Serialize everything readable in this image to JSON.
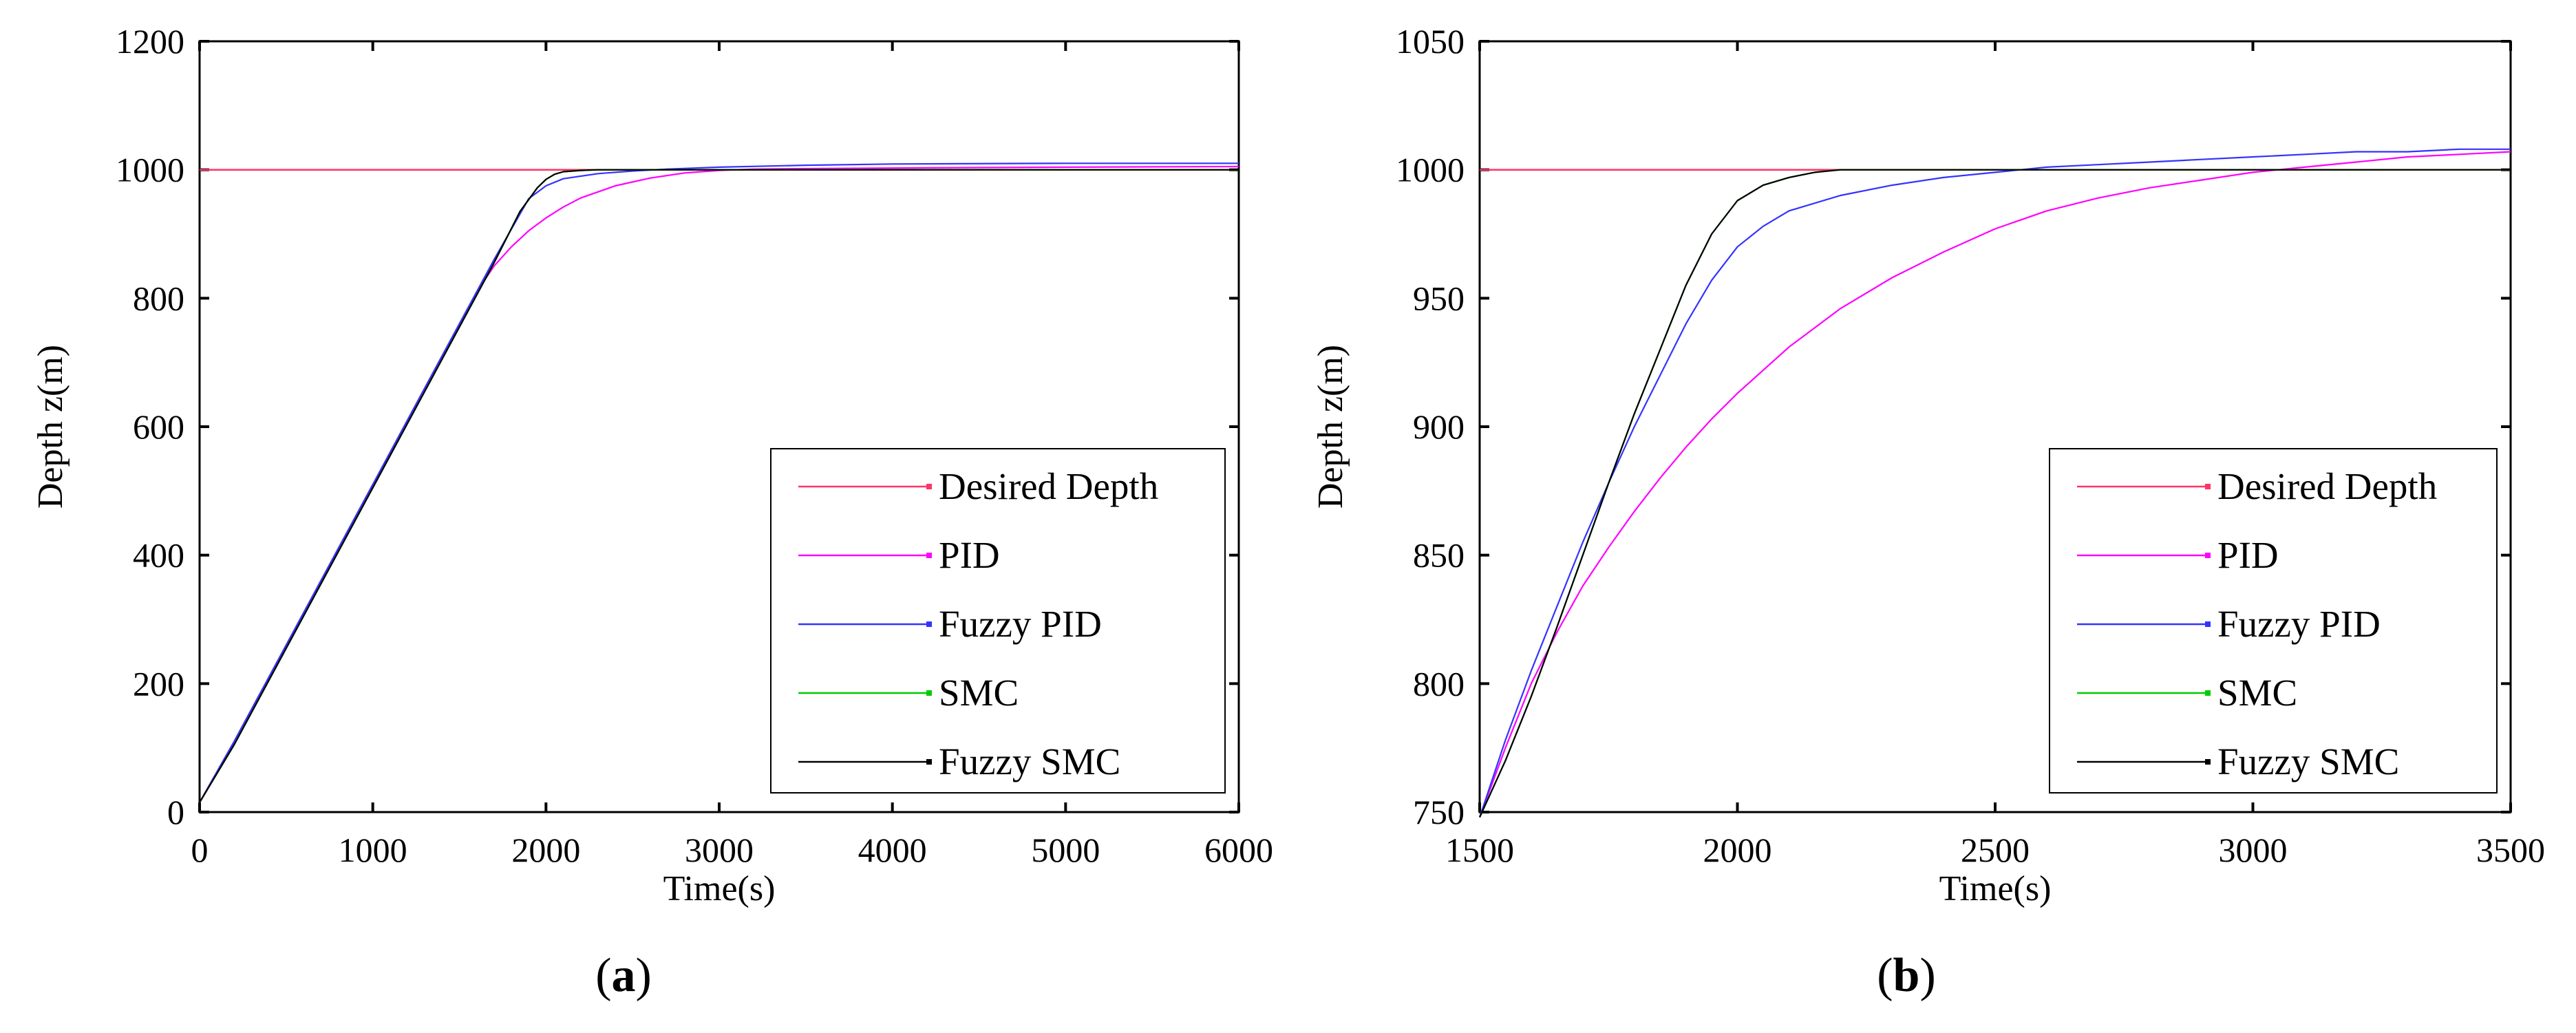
{
  "chart_data": [
    {
      "id": "a",
      "type": "line",
      "panel_label": "a",
      "title": "",
      "xlabel": "Time(s)",
      "ylabel": "Depth z(m)",
      "xlim": [
        0,
        6000
      ],
      "ylim": [
        0,
        1200
      ],
      "xticks": [
        0,
        1000,
        2000,
        3000,
        4000,
        5000,
        6000
      ],
      "yticks": [
        0,
        200,
        400,
        600,
        800,
        1000,
        1200
      ],
      "legend_position": "bottom-right",
      "series": [
        {
          "name": "Desired Depth",
          "color": "#ff3366",
          "x": [
            0,
            6000
          ],
          "y": [
            1000,
            1000
          ]
        },
        {
          "name": "PID",
          "color": "#ff00ff",
          "x": [
            0,
            200,
            600,
            1000,
            1400,
            1600,
            1700,
            1800,
            1900,
            2000,
            2100,
            2200,
            2400,
            2600,
            2800,
            3000,
            3200,
            3600,
            4200,
            5000,
            6000
          ],
          "y": [
            15,
            110,
            310,
            510,
            710,
            810,
            850,
            880,
            905,
            925,
            942,
            956,
            975,
            987,
            995,
            999,
            1001,
            1002,
            1003,
            1004,
            1005
          ]
        },
        {
          "name": "Fuzzy PID",
          "color": "#3333ff",
          "x": [
            0,
            200,
            600,
            1000,
            1400,
            1700,
            1900,
            2000,
            2100,
            2300,
            2500,
            2700,
            3000,
            3500,
            4000,
            5000,
            6000
          ],
          "y": [
            15,
            110,
            310,
            510,
            710,
            860,
            955,
            975,
            986,
            994,
            998,
            1001,
            1004,
            1007,
            1009,
            1010,
            1010
          ]
        },
        {
          "name": "SMC",
          "color": "#00cc00",
          "x": [
            0,
            200,
            600,
            1000,
            1400,
            1700,
            1850,
            1950,
            2000,
            2050,
            2100,
            2200,
            2300,
            2500,
            6000
          ],
          "y": [
            15,
            105,
            305,
            505,
            705,
            855,
            935,
            972,
            985,
            993,
            997,
            999,
            1000,
            1000,
            1000
          ]
        },
        {
          "name": "Fuzzy SMC",
          "color": "#000000",
          "x": [
            0,
            200,
            600,
            1000,
            1400,
            1700,
            1850,
            1950,
            2000,
            2050,
            2100,
            2200,
            2300,
            2500,
            6000
          ],
          "y": [
            15,
            105,
            305,
            505,
            705,
            855,
            935,
            972,
            985,
            993,
            997,
            999,
            1000,
            1000,
            1000
          ]
        }
      ]
    },
    {
      "id": "b",
      "type": "line",
      "panel_label": "b",
      "title": "",
      "xlabel": "Time(s)",
      "ylabel": "Depth z(m)",
      "xlim": [
        1500,
        3500
      ],
      "ylim": [
        750,
        1050
      ],
      "xticks": [
        1500,
        2000,
        2500,
        3000,
        3500
      ],
      "yticks": [
        750,
        800,
        850,
        900,
        950,
        1000,
        1050
      ],
      "legend_position": "bottom-right",
      "series": [
        {
          "name": "Desired Depth",
          "color": "#ff3366",
          "x": [
            1500,
            3500
          ],
          "y": [
            1000,
            1000
          ]
        },
        {
          "name": "PID",
          "color": "#ff00ff",
          "x": [
            1500,
            1550,
            1600,
            1650,
            1700,
            1750,
            1800,
            1850,
            1900,
            1950,
            2000,
            2100,
            2200,
            2300,
            2400,
            2500,
            2600,
            2700,
            2800,
            2900,
            3000,
            3100,
            3200,
            3300,
            3400,
            3500
          ],
          "y": [
            748,
            775,
            800,
            820,
            838,
            853,
            867,
            880,
            892,
            903,
            913,
            931,
            946,
            958,
            968,
            977,
            984,
            989,
            993,
            996,
            999,
            1001,
            1003,
            1005,
            1006,
            1007
          ]
        },
        {
          "name": "Fuzzy PID",
          "color": "#3333ff",
          "x": [
            1500,
            1550,
            1600,
            1650,
            1700,
            1750,
            1800,
            1850,
            1900,
            1950,
            2000,
            2050,
            2100,
            2200,
            2300,
            2400,
            2500,
            2600,
            2700,
            2800,
            2900,
            3000,
            3100,
            3200,
            3300,
            3400,
            3500
          ],
          "y": [
            748,
            778,
            805,
            830,
            855,
            878,
            900,
            920,
            940,
            957,
            970,
            978,
            984,
            990,
            994,
            997,
            999,
            1001,
            1002,
            1003,
            1004,
            1005,
            1006,
            1007,
            1007,
            1008,
            1008
          ]
        },
        {
          "name": "SMC",
          "color": "#00cc00",
          "x": [
            1500,
            1550,
            1600,
            1650,
            1700,
            1750,
            1800,
            1850,
            1900,
            1950,
            2000,
            2050,
            2100,
            2150,
            2200,
            2300,
            2500,
            3500
          ],
          "y": [
            748,
            770,
            795,
            822,
            850,
            878,
            905,
            930,
            955,
            975,
            988,
            994,
            997,
            999,
            1000,
            1000,
            1000,
            1000
          ]
        },
        {
          "name": "Fuzzy SMC",
          "color": "#000000",
          "x": [
            1500,
            1550,
            1600,
            1650,
            1700,
            1750,
            1800,
            1850,
            1900,
            1950,
            2000,
            2050,
            2100,
            2150,
            2200,
            2300,
            2500,
            3500
          ],
          "y": [
            748,
            770,
            795,
            822,
            850,
            878,
            905,
            930,
            955,
            975,
            988,
            994,
            997,
            999,
            1000,
            1000,
            1000,
            1000
          ]
        }
      ]
    }
  ]
}
